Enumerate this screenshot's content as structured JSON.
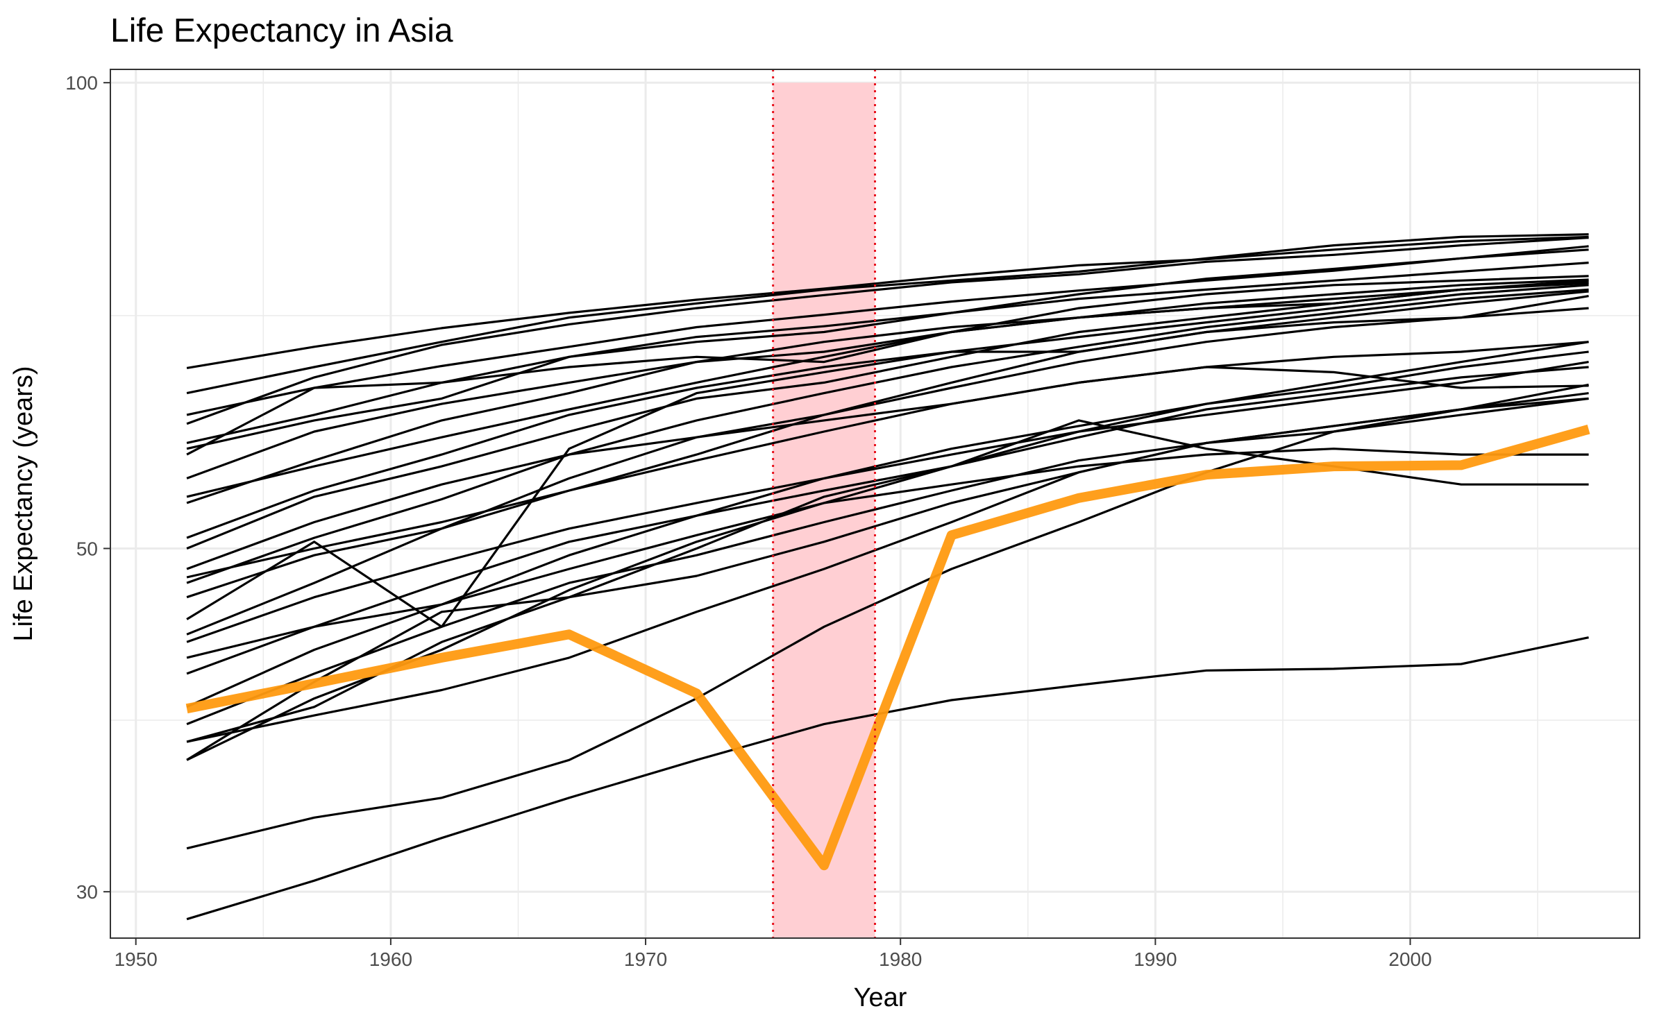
{
  "chart_data": {
    "type": "line",
    "title": "Life Expectancy in Asia",
    "xlabel": "Year",
    "ylabel": "Life Expectancy (years)",
    "x_ticks": [
      "1950",
      "1960",
      "1970",
      "1980",
      "1990",
      "2000"
    ],
    "y_ticks": [
      "30",
      "50",
      "100"
    ],
    "y_scale": "log",
    "xlim": [
      1949,
      2009
    ],
    "ylim": [
      28,
      102
    ],
    "grid": true,
    "legend": "none",
    "highlight_period": {
      "x_start": 1975,
      "x_end": 1979,
      "y_top": 100,
      "fill": "#ffcfd3",
      "line_color": "#e8141f",
      "line_style": "dotted"
    },
    "colors": {
      "series": "#000000",
      "highlight_series": "#ff9a10"
    },
    "x": [
      1952,
      1957,
      1962,
      1967,
      1972,
      1977,
      1982,
      1987,
      1992,
      1997,
      2002,
      2007
    ],
    "series": [
      {
        "values": [
          65.4,
          67.5,
          69.4,
          71.0,
          72.4,
          73.6,
          75.0,
          76.2,
          76.9,
          78.0,
          79.0,
          79.5
        ]
      },
      {
        "values": [
          63.0,
          65.5,
          68.0,
          70.5,
          72.0,
          73.5,
          74.5,
          75.5,
          77.0,
          78.5,
          79.5,
          79.8
        ]
      },
      {
        "values": [
          60.2,
          64.5,
          67.7,
          69.8,
          71.5,
          72.9,
          74.3,
          75.2,
          76.6,
          77.4,
          78.5,
          79.4
        ]
      },
      {
        "values": [
          61.0,
          63.5,
          65.6,
          67.5,
          69.5,
          70.8,
          72.2,
          73.4,
          74.5,
          75.6,
          77.0,
          78.4
        ]
      },
      {
        "values": [
          58.5,
          61.0,
          64.0,
          66.5,
          68.0,
          69.0,
          71.0,
          73.0,
          74.7,
          75.8,
          77.0,
          78.0
        ]
      },
      {
        "values": [
          58.0,
          60.5,
          62.5,
          66.5,
          68.5,
          69.6,
          71.0,
          72.5,
          73.5,
          74.5,
          75.5,
          76.5
        ]
      },
      {
        "values": [
          57.5,
          63.5,
          64.0,
          65.5,
          66.5,
          66.0,
          69.0,
          70.5,
          71.5,
          72.5,
          73.5,
          74.5
        ]
      },
      {
        "values": [
          55.5,
          59.5,
          62.0,
          64.0,
          66.0,
          67.0,
          69.0,
          70.5,
          72.0,
          73.0,
          74.0,
          74.6
        ]
      },
      {
        "values": [
          54.0,
          56.5,
          59.0,
          61.5,
          64.0,
          66.5,
          69.0,
          71.5,
          73.0,
          74.0,
          74.5,
          75.0
        ]
      },
      {
        "values": [
          53.5,
          57.0,
          60.5,
          63.0,
          66.0,
          68.0,
          69.5,
          70.5,
          71.5,
          72.0,
          73.5,
          74.2
        ]
      },
      {
        "values": [
          50.8,
          54.5,
          57.5,
          61.0,
          63.5,
          65.5,
          67.0,
          68.5,
          70.0,
          71.5,
          73.0,
          74.0
        ]
      },
      {
        "values": [
          50.0,
          54.0,
          56.5,
          59.5,
          62.5,
          64.0,
          66.5,
          69.0,
          70.5,
          72.0,
          73.5,
          74.3
        ]
      },
      {
        "values": [
          47.5,
          50.8,
          53.8,
          57.5,
          60.5,
          63.0,
          65.5,
          67.5,
          69.5,
          71.0,
          72.5,
          73.5
        ]
      },
      {
        "values": [
          47.9,
          50.0,
          52.0,
          54.5,
          57.5,
          61.0,
          64.0,
          67.0,
          69.0,
          70.5,
          72.0,
          73.3
        ]
      },
      {
        "values": [
          45.0,
          50.5,
          44.5,
          58.0,
          63.0,
          65.0,
          67.0,
          67.0,
          69.0,
          70.0,
          70.5,
          72.8
        ]
      },
      {
        "values": [
          44.0,
          47.5,
          51.5,
          55.5,
          59.0,
          61.0,
          63.5,
          66.0,
          68.0,
          69.5,
          70.5,
          71.5
        ]
      },
      {
        "values": [
          46.5,
          49.5,
          51.5,
          54.5,
          57.0,
          59.5,
          62.0,
          64.0,
          65.5,
          66.5,
          67.0,
          68.0
        ]
      },
      {
        "values": [
          48.5,
          52.0,
          55.0,
          57.5,
          59.0,
          60.5,
          62.0,
          64.0,
          65.5,
          65.0,
          63.5,
          63.7
        ]
      },
      {
        "values": [
          43.5,
          46.5,
          49.0,
          51.5,
          53.5,
          55.5,
          57.5,
          59.5,
          61.0,
          62.5,
          64.0,
          66.0
        ]
      },
      {
        "values": [
          41.5,
          44.5,
          47.5,
          50.5,
          52.5,
          55.5,
          58.0,
          60.0,
          62.0,
          63.5,
          65.5,
          67.0
        ]
      },
      {
        "values": [
          39.5,
          43.0,
          46.0,
          49.5,
          52.5,
          54.5,
          56.5,
          60.5,
          58.0,
          56.5,
          55.0,
          55.0
        ]
      },
      {
        "values": [
          42.5,
          44.5,
          46.0,
          48.5,
          51.0,
          53.5,
          55.0,
          56.5,
          57.5,
          58.0,
          57.5,
          57.5
        ]
      },
      {
        "values": [
          38.5,
          41.5,
          44.5,
          47.5,
          49.5,
          52.0,
          54.5,
          57.0,
          58.5,
          60.0,
          61.5,
          62.5
        ]
      },
      {
        "values": [
          37.5,
          39.5,
          43.5,
          46.5,
          50.0,
          54.0,
          56.5,
          59.0,
          61.5,
          63.0,
          64.5,
          65.5
        ]
      },
      {
        "values": [
          36.5,
          40.0,
          43.0,
          47.0,
          50.5,
          53.5,
          56.5,
          59.5,
          62.0,
          64.0,
          66.0,
          68.0
        ]
      },
      {
        "values": [
          37.5,
          39.0,
          40.5,
          42.5,
          45.5,
          48.5,
          52.0,
          56.0,
          58.5,
          60.0,
          61.5,
          63.0
        ]
      },
      {
        "values": [
          36.5,
          41.0,
          45.5,
          46.5,
          48.0,
          50.5,
          53.5,
          56.0,
          58.5,
          59.5,
          61.0,
          62.5
        ]
      },
      {
        "values": [
          32.0,
          33.5,
          34.5,
          36.5,
          40.0,
          44.5,
          48.5,
          52.0,
          56.0,
          59.5,
          61.5,
          63.8
        ]
      },
      {
        "values": [
          28.8,
          30.5,
          32.5,
          34.5,
          36.5,
          38.5,
          39.9,
          40.8,
          41.7,
          41.8,
          42.1,
          43.8
        ]
      },
      {
        "name_hidden": true,
        "values": [
          39.4,
          40.9,
          42.5,
          44.0,
          40.3,
          31.2,
          51.0,
          53.9,
          55.8,
          56.5,
          56.6,
          59.7
        ],
        "highlight": true
      }
    ]
  }
}
